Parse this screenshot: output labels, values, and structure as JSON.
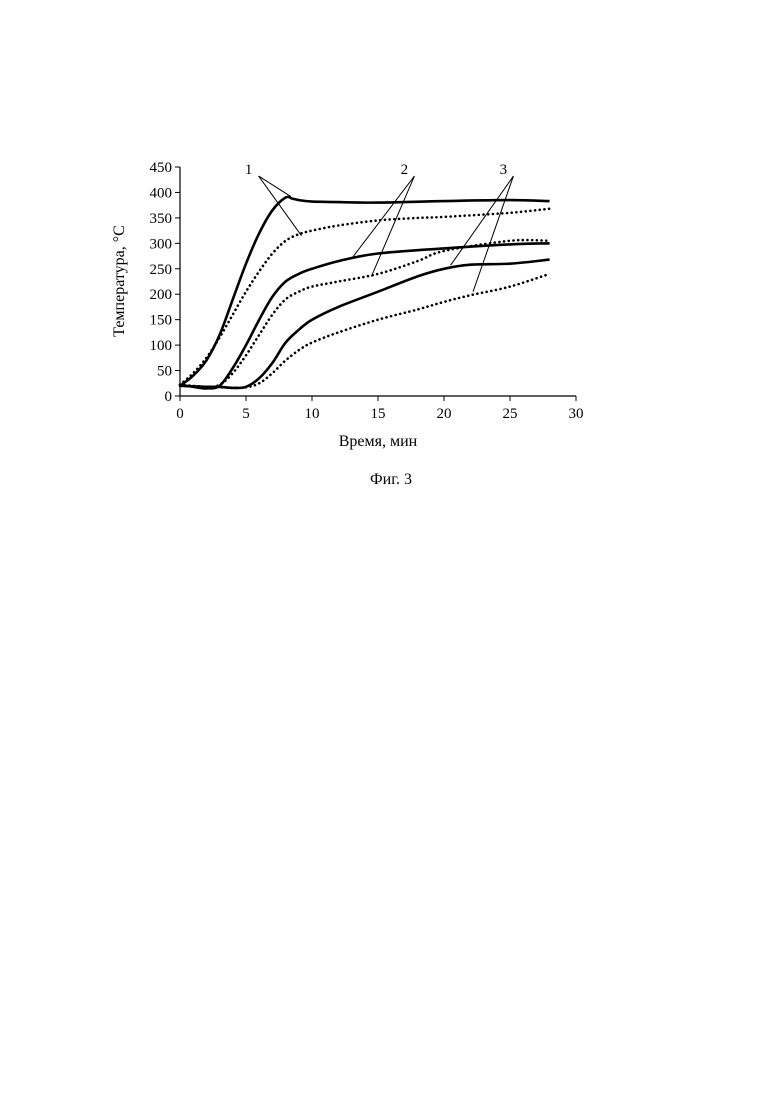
{
  "chart_data": {
    "type": "line",
    "title": "",
    "caption": "Фиг. 3",
    "xlabel": "Время, мин",
    "ylabel": "Температура, °С",
    "xlim": [
      0,
      30
    ],
    "ylim": [
      0,
      450
    ],
    "xticks": [
      0,
      5,
      10,
      15,
      20,
      25,
      30
    ],
    "yticks": [
      0,
      50,
      100,
      150,
      200,
      250,
      300,
      350,
      400,
      450
    ],
    "grid": false,
    "legend": "none",
    "curve_labels": [
      "1",
      "2",
      "3"
    ],
    "series": [
      {
        "group": "1",
        "style": "solid",
        "x": [
          0,
          1,
          2,
          3,
          4,
          5,
          6,
          7,
          8,
          8.5,
          9,
          10,
          12,
          15,
          20,
          25,
          28
        ],
        "y": [
          20,
          40,
          70,
          120,
          190,
          260,
          320,
          365,
          390,
          388,
          385,
          382,
          381,
          380,
          383,
          385,
          383
        ]
      },
      {
        "group": "1",
        "style": "dotted",
        "x": [
          0,
          1,
          2,
          3,
          4,
          5,
          6,
          7,
          8,
          9,
          10,
          12,
          15,
          18,
          20,
          25,
          28
        ],
        "y": [
          22,
          45,
          75,
          115,
          160,
          205,
          245,
          280,
          305,
          318,
          325,
          335,
          345,
          350,
          352,
          360,
          368
        ]
      },
      {
        "group": "2",
        "style": "solid",
        "x": [
          0,
          1,
          2,
          3,
          4,
          5,
          6,
          7,
          8,
          9,
          10,
          12,
          15,
          20,
          25,
          28
        ],
        "y": [
          22,
          18,
          15,
          20,
          55,
          100,
          150,
          195,
          225,
          240,
          250,
          265,
          280,
          290,
          298,
          300
        ]
      },
      {
        "group": "2",
        "style": "dotted",
        "x": [
          0,
          1,
          2,
          3,
          4,
          5,
          6,
          7,
          8,
          9,
          10,
          12,
          15,
          18,
          20,
          25,
          28
        ],
        "y": [
          22,
          20,
          18,
          22,
          45,
          80,
          120,
          160,
          190,
          205,
          215,
          225,
          240,
          265,
          285,
          305,
          305
        ]
      },
      {
        "group": "3",
        "style": "solid",
        "x": [
          0,
          1,
          2,
          3,
          4,
          5,
          6,
          7,
          8,
          9,
          10,
          12,
          15,
          18,
          20,
          22,
          25,
          28
        ],
        "y": [
          20,
          19,
          18,
          18,
          16,
          18,
          35,
          65,
          105,
          130,
          150,
          175,
          205,
          235,
          250,
          258,
          260,
          268
        ]
      },
      {
        "group": "3",
        "style": "dotted",
        "x": [
          0,
          1,
          2,
          3,
          4,
          5,
          6,
          7,
          8,
          9,
          10,
          12,
          15,
          18,
          20,
          22,
          25,
          28
        ],
        "y": [
          20,
          19,
          18,
          17,
          16,
          17,
          25,
          45,
          70,
          90,
          105,
          125,
          150,
          170,
          185,
          198,
          215,
          240
        ]
      }
    ],
    "leaders": [
      {
        "label": "1",
        "label_at": [
          5.2,
          440
        ],
        "targets": [
          [
            8.4,
            392
          ],
          [
            9.2,
            315
          ]
        ]
      },
      {
        "label": "2",
        "label_at": [
          17.0,
          440
        ],
        "targets": [
          [
            13.0,
            270
          ],
          [
            14.5,
            235
          ]
        ]
      },
      {
        "label": "3",
        "label_at": [
          24.5,
          440
        ],
        "targets": [
          [
            20.5,
            257
          ],
          [
            22.2,
            205
          ]
        ]
      }
    ]
  }
}
